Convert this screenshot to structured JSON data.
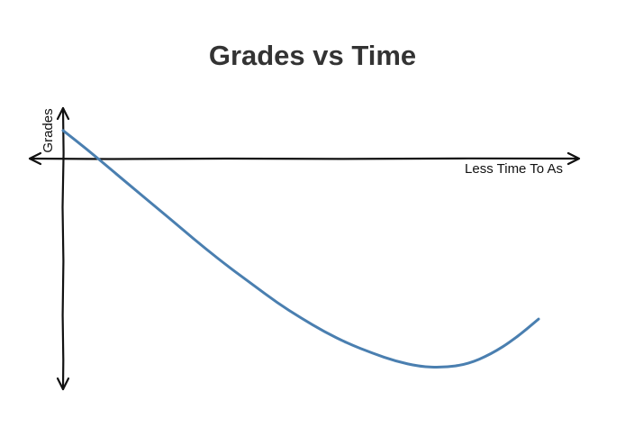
{
  "chart_data": {
    "type": "line",
    "title": "Grades vs Time",
    "xlabel": "Less Time To As",
    "ylabel": "Grades",
    "grid": false,
    "xlim": [
      0,
      100
    ],
    "ylim": [
      -100,
      20
    ],
    "series": [
      {
        "color": "#4a7fb0",
        "x": [
          0,
          5,
          10,
          15,
          20,
          25,
          30,
          35,
          40,
          45,
          50,
          55,
          60,
          65,
          70,
          75,
          80,
          85,
          90,
          95,
          100
        ],
        "y": [
          12,
          4,
          -4.5,
          -13,
          -21.5,
          -30,
          -38.5,
          -46.5,
          -54,
          -61.5,
          -68,
          -74,
          -79,
          -83,
          -86.5,
          -88.8,
          -89.2,
          -87.8,
          -83.5,
          -77,
          -68.5
        ]
      }
    ]
  }
}
